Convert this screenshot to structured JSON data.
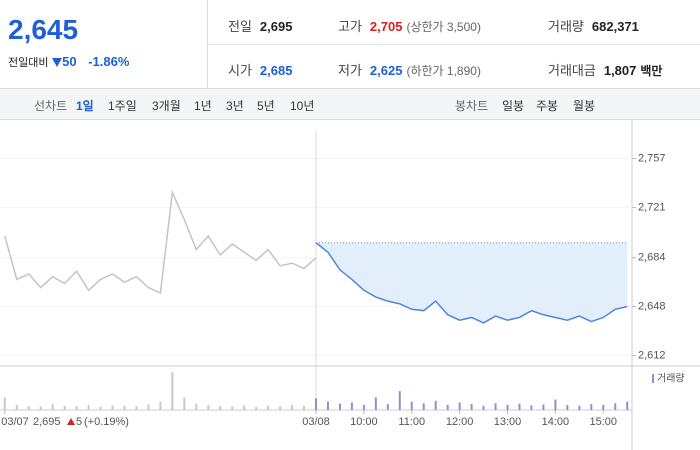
{
  "quote": {
    "price": "2,645",
    "change_label": "전일대비",
    "change": "50",
    "change_rate": "-1.86%"
  },
  "stats": [
    {
      "label": "전일",
      "value": "2,695"
    },
    {
      "label": "고가",
      "value": "2,705",
      "note": "(상한가 3,500)"
    },
    {
      "label": "거래량",
      "value": "682,371"
    },
    {
      "label": "시가",
      "value": "2,685"
    },
    {
      "label": "저가",
      "value": "2,625",
      "note": "(하한가 1,890)"
    },
    {
      "label": "거래대금",
      "value": "1,807",
      "unit": "백만"
    }
  ],
  "tabs": {
    "line_label": "선차트",
    "line_periods": [
      "1일",
      "1주일",
      "3개월",
      "1년",
      "3년",
      "5년",
      "10년"
    ],
    "line_active": 0,
    "candle_label": "봉차트",
    "candle_periods": [
      "일봉",
      "주봉",
      "월봉"
    ]
  },
  "footer": {
    "price": "2,695",
    "change": "5",
    "rate": "(+0.19%)"
  },
  "chart_data": [
    {
      "type": "line",
      "xlim": [
        -0.1,
        13.1
      ],
      "ylim": [
        2605,
        2778
      ],
      "yticks": [
        {
          "value": 2612,
          "label": "2,612"
        },
        {
          "value": 2648,
          "label": "2,648"
        },
        {
          "value": 2684,
          "label": "2,684"
        },
        {
          "value": 2721,
          "label": "2,721"
        },
        {
          "value": 2757,
          "label": "2,757"
        }
      ],
      "xticks": [
        {
          "value": 0,
          "label": "03/07"
        },
        {
          "value": 6.5,
          "label": "03/08"
        },
        {
          "value": 7.5,
          "label": "10:00"
        },
        {
          "value": 8.5,
          "label": "11:00"
        },
        {
          "value": 9.5,
          "label": "12:00"
        },
        {
          "value": 10.5,
          "label": "13:00"
        },
        {
          "value": 11.5,
          "label": "14:00"
        },
        {
          "value": 12.5,
          "label": "15:00"
        }
      ],
      "reference": 2695,
      "series": [
        {
          "color": "#c4c4c4",
          "x": [
            0,
            0.25,
            0.5,
            0.75,
            1,
            1.25,
            1.5,
            1.75,
            2,
            2.25,
            2.5,
            2.75,
            3,
            3.25,
            3.5,
            3.75,
            4,
            4.25,
            4.5,
            4.75,
            5,
            5.25,
            5.5,
            5.75,
            6,
            6.25,
            6.5
          ],
          "values": [
            2700,
            2668,
            2672,
            2662,
            2670,
            2665,
            2674,
            2660,
            2668,
            2672,
            2666,
            2670,
            2662,
            2658,
            2732,
            2712,
            2690,
            2700,
            2686,
            2694,
            2688,
            2682,
            2690,
            2678,
            2680,
            2676,
            2684
          ]
        },
        {
          "color": "#4a86e0",
          "x": [
            6.5,
            6.75,
            7,
            7.25,
            7.5,
            7.75,
            8,
            8.25,
            8.5,
            8.75,
            9,
            9.25,
            9.5,
            9.75,
            10,
            10.25,
            10.5,
            10.75,
            11,
            11.25,
            11.5,
            11.75,
            12,
            12.25,
            12.5,
            12.75,
            13
          ],
          "values": [
            2695,
            2688,
            2675,
            2668,
            2660,
            2655,
            2652,
            2650,
            2646,
            2645,
            2652,
            2642,
            2638,
            2640,
            2636,
            2641,
            2638,
            2640,
            2645,
            2642,
            2640,
            2638,
            2641,
            2637,
            2640,
            2646,
            2648
          ]
        }
      ]
    },
    {
      "type": "bar",
      "legend": "거래량",
      "ylim": [
        0,
        100000
      ],
      "series": [
        {
          "color": "#c8c8c8",
          "x": [
            0,
            0.25,
            0.5,
            0.75,
            1,
            1.25,
            1.5,
            1.75,
            2,
            2.25,
            2.5,
            2.75,
            3,
            3.25,
            3.5,
            3.75,
            4,
            4.25,
            4.5,
            4.75,
            5,
            5.25,
            5.5,
            5.75,
            6,
            6.25,
            6.5
          ],
          "values": [
            30000,
            12000,
            9000,
            8000,
            14000,
            10000,
            9000,
            12000,
            8000,
            11000,
            10000,
            9000,
            13000,
            20000,
            90000,
            30000,
            15000,
            12000,
            10000,
            9000,
            11000,
            8000,
            10000,
            9000,
            12000,
            10000,
            14000
          ]
        },
        {
          "color": "#9a8bd0",
          "x": [
            6.5,
            6.75,
            7,
            7.25,
            7.5,
            7.75,
            8,
            8.25,
            8.5,
            8.75,
            9,
            9.25,
            9.5,
            9.75,
            10,
            10.25,
            10.5,
            10.75,
            11,
            11.25,
            11.5,
            11.75,
            12,
            12.25,
            12.5,
            12.75,
            13
          ],
          "values": [
            28000,
            20000,
            15000,
            18000,
            12000,
            30000,
            14000,
            45000,
            20000,
            16000,
            22000,
            12000,
            18000,
            14000,
            10000,
            16000,
            12000,
            15000,
            11000,
            13000,
            25000,
            12000,
            10000,
            14000,
            12000,
            16000,
            20000
          ]
        }
      ]
    }
  ]
}
